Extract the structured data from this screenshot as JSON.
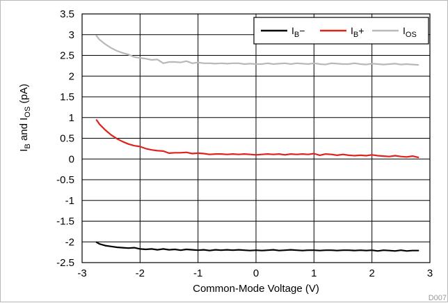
{
  "chart_data": {
    "type": "line",
    "title": "",
    "xlabel": "Common-Mode Voltage (V)",
    "ylabel": {
      "base": "I",
      "sub1": "B",
      "mid": " and I",
      "sub2": "OS",
      "tail": " (pA)"
    },
    "xlim": [
      -3,
      3
    ],
    "ylim": [
      -2.5,
      3.5
    ],
    "x_ticks": [
      -3,
      -2,
      -1,
      0,
      1,
      2,
      3
    ],
    "x_tick_labels": [
      "-3",
      "-2",
      "-1",
      "0",
      "1",
      "2",
      "3"
    ],
    "y_ticks": [
      -2.5,
      -2,
      -1.5,
      -1,
      -0.5,
      0,
      0.5,
      1,
      1.5,
      2,
      2.5,
      3,
      3.5
    ],
    "y_tick_labels": [
      "-2.5",
      "-2",
      "-1.5",
      "-1",
      "-0.5",
      "0",
      "0.5",
      "1",
      "1.5",
      "2",
      "2.5",
      "3",
      "3.5"
    ],
    "grid": true,
    "legend_position": "top-right",
    "figure_id": "D007",
    "series": [
      {
        "name": "I_B−",
        "legend": {
          "main": "I",
          "sub": "B",
          "suffix": "−"
        },
        "color": "#000000",
        "x": [
          -2.75,
          -2.7,
          -2.6,
          -2.5,
          -2.4,
          -2.3,
          -2.2,
          -2.1,
          -2.0,
          -1.9,
          -1.8,
          -1.7,
          -1.6,
          -1.5,
          -1.4,
          -1.3,
          -1.2,
          -1.1,
          -1.0,
          -0.9,
          -0.8,
          -0.7,
          -0.6,
          -0.5,
          -0.4,
          -0.3,
          -0.2,
          -0.1,
          0.0,
          0.1,
          0.2,
          0.3,
          0.4,
          0.5,
          0.6,
          0.7,
          0.8,
          0.9,
          1.0,
          1.1,
          1.2,
          1.3,
          1.4,
          1.5,
          1.6,
          1.7,
          1.8,
          1.9,
          2.0,
          2.1,
          2.2,
          2.3,
          2.4,
          2.5,
          2.6,
          2.7,
          2.8
        ],
        "y": [
          -2.01,
          -2.05,
          -2.09,
          -2.11,
          -2.13,
          -2.14,
          -2.15,
          -2.14,
          -2.17,
          -2.18,
          -2.17,
          -2.19,
          -2.17,
          -2.19,
          -2.18,
          -2.2,
          -2.18,
          -2.19,
          -2.2,
          -2.19,
          -2.21,
          -2.19,
          -2.2,
          -2.19,
          -2.2,
          -2.19,
          -2.2,
          -2.21,
          -2.2,
          -2.21,
          -2.2,
          -2.19,
          -2.21,
          -2.2,
          -2.19,
          -2.2,
          -2.21,
          -2.2,
          -2.2,
          -2.21,
          -2.2,
          -2.2,
          -2.21,
          -2.2,
          -2.2,
          -2.21,
          -2.2,
          -2.21,
          -2.2,
          -2.22,
          -2.2,
          -2.21,
          -2.22,
          -2.2,
          -2.22,
          -2.21,
          -2.21
        ]
      },
      {
        "name": "I_B+",
        "legend": {
          "main": "I",
          "sub": "B",
          "suffix": "+"
        },
        "color": "#e0201b",
        "x": [
          -2.75,
          -2.7,
          -2.6,
          -2.5,
          -2.4,
          -2.3,
          -2.2,
          -2.1,
          -2.0,
          -1.9,
          -1.8,
          -1.7,
          -1.6,
          -1.5,
          -1.4,
          -1.3,
          -1.2,
          -1.1,
          -1.0,
          -0.9,
          -0.8,
          -0.7,
          -0.6,
          -0.5,
          -0.4,
          -0.3,
          -0.2,
          -0.1,
          0.0,
          0.1,
          0.2,
          0.3,
          0.4,
          0.5,
          0.6,
          0.7,
          0.8,
          0.9,
          1.0,
          1.1,
          1.2,
          1.3,
          1.4,
          1.5,
          1.6,
          1.7,
          1.8,
          1.9,
          2.0,
          2.1,
          2.2,
          2.3,
          2.4,
          2.5,
          2.6,
          2.7,
          2.8
        ],
        "y": [
          0.94,
          0.84,
          0.7,
          0.58,
          0.49,
          0.42,
          0.36,
          0.32,
          0.3,
          0.25,
          0.22,
          0.2,
          0.19,
          0.14,
          0.15,
          0.15,
          0.16,
          0.13,
          0.14,
          0.13,
          0.11,
          0.12,
          0.12,
          0.11,
          0.12,
          0.11,
          0.12,
          0.11,
          0.1,
          0.11,
          0.12,
          0.11,
          0.12,
          0.1,
          0.12,
          0.11,
          0.12,
          0.11,
          0.13,
          0.09,
          0.12,
          0.11,
          0.09,
          0.11,
          0.09,
          0.08,
          0.09,
          0.08,
          0.1,
          0.08,
          0.07,
          0.06,
          0.08,
          0.06,
          0.05,
          0.07,
          0.04
        ]
      },
      {
        "name": "I_OS",
        "legend": {
          "main": "I",
          "sub": "OS",
          "suffix": ""
        },
        "color": "#b8b8b8",
        "x": [
          -2.75,
          -2.7,
          -2.6,
          -2.5,
          -2.4,
          -2.3,
          -2.2,
          -2.1,
          -2.0,
          -1.9,
          -1.8,
          -1.7,
          -1.6,
          -1.5,
          -1.4,
          -1.3,
          -1.2,
          -1.1,
          -1.0,
          -0.9,
          -0.8,
          -0.7,
          -0.6,
          -0.5,
          -0.4,
          -0.3,
          -0.2,
          -0.1,
          0.0,
          0.1,
          0.2,
          0.3,
          0.4,
          0.5,
          0.6,
          0.7,
          0.8,
          0.9,
          1.0,
          1.1,
          1.2,
          1.3,
          1.4,
          1.5,
          1.6,
          1.7,
          1.8,
          1.9,
          2.0,
          2.1,
          2.2,
          2.3,
          2.4,
          2.5,
          2.6,
          2.7,
          2.8
        ],
        "y": [
          2.97,
          2.88,
          2.77,
          2.68,
          2.61,
          2.56,
          2.52,
          2.46,
          2.44,
          2.42,
          2.39,
          2.4,
          2.31,
          2.34,
          2.34,
          2.33,
          2.36,
          2.31,
          2.33,
          2.31,
          2.31,
          2.3,
          2.31,
          2.3,
          2.31,
          2.31,
          2.29,
          2.3,
          2.29,
          2.29,
          2.31,
          2.29,
          2.3,
          2.31,
          2.29,
          2.31,
          2.3,
          2.29,
          2.31,
          2.29,
          2.28,
          2.31,
          2.3,
          2.29,
          2.29,
          2.31,
          2.29,
          2.28,
          2.3,
          2.29,
          2.28,
          2.29,
          2.3,
          2.28,
          2.29,
          2.28,
          2.27
        ]
      }
    ]
  }
}
